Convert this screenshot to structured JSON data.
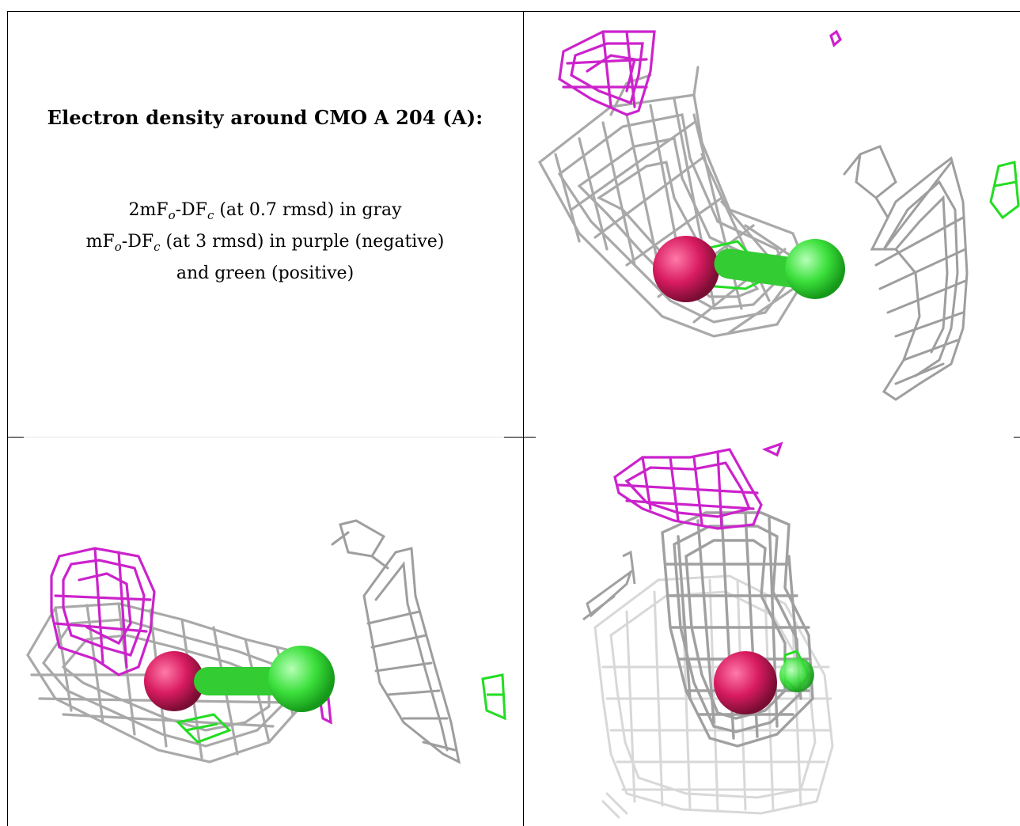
{
  "caption": {
    "title": "Electron density around CMO A 204 (A):",
    "line1": {
      "prefix": "2mF",
      "sub1": "o",
      "mid": "-DF",
      "sub2": "c",
      "suffix": " (at 0.7 rmsd) in gray"
    },
    "line2": {
      "prefix": "mF",
      "sub1": "o",
      "mid": "-DF",
      "sub2": "c",
      "suffix": " (at 3 rmsd) in purple (negative)"
    },
    "line3": "and green (positive)"
  },
  "colors": {
    "gray_mesh": "#a9a9a9",
    "negative_density": "#cc22cc",
    "positive_density": "#22dd22",
    "oxygen_atom": "#d81b60",
    "carbon_atom": "#3ce03c"
  },
  "icons": [
    "density-mesh",
    "atom-sphere"
  ]
}
